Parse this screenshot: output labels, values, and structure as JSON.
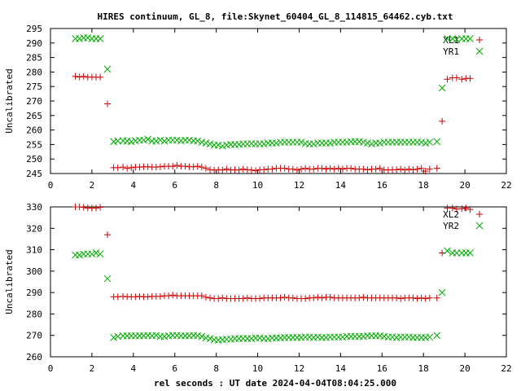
{
  "title": "HIRES continuum, GL_8, file:Skynet_60404_GL_8_114815_64462.cyb.txt",
  "chart_data": [
    {
      "type": "scatter",
      "ylabel": "Uncalibrated",
      "xlabel": "",
      "xlim": [
        0,
        22
      ],
      "ylim": [
        245,
        295
      ],
      "x_ticks": [
        0,
        2,
        4,
        6,
        8,
        10,
        12,
        14,
        16,
        18,
        20,
        22
      ],
      "y_ticks": [
        245,
        250,
        255,
        260,
        265,
        270,
        275,
        280,
        285,
        290,
        295
      ],
      "legend_position": "top-right",
      "series": [
        {
          "name": "XL1",
          "marker": "plus",
          "color": "#cc0000",
          "x": [
            1.2,
            1.4,
            1.6,
            1.8,
            2.0,
            2.2,
            2.4,
            2.75,
            3.05,
            3.25,
            3.5,
            3.7,
            3.9,
            4.1,
            4.3,
            4.5,
            4.7,
            4.9,
            5.1,
            5.3,
            5.5,
            5.7,
            5.9,
            6.1,
            6.3,
            6.5,
            6.7,
            6.9,
            7.1,
            7.3,
            7.5,
            7.7,
            7.9,
            8.1,
            8.3,
            8.5,
            8.7,
            8.9,
            9.1,
            9.3,
            9.5,
            9.7,
            9.9,
            10.1,
            10.3,
            10.5,
            10.7,
            10.9,
            11.1,
            11.3,
            11.5,
            11.7,
            11.9,
            12.1,
            12.3,
            12.5,
            12.7,
            12.9,
            13.1,
            13.3,
            13.5,
            13.7,
            13.9,
            14.1,
            14.3,
            14.5,
            14.7,
            14.9,
            15.1,
            15.3,
            15.5,
            15.7,
            15.9,
            16.1,
            16.3,
            16.5,
            16.7,
            16.9,
            17.1,
            17.3,
            17.5,
            17.7,
            17.9,
            18.1,
            18.3,
            18.65,
            18.9,
            19.15,
            19.4,
            19.6,
            19.85,
            20.05,
            20.25
          ],
          "y": [
            278.5,
            278.3,
            278.5,
            278.2,
            278.3,
            278.2,
            278.2,
            269.0,
            247.0,
            247.0,
            247.2,
            246.8,
            247.0,
            247.2,
            247.2,
            247.3,
            247.3,
            247.2,
            247.2,
            247.3,
            247.5,
            247.5,
            247.5,
            247.8,
            247.5,
            247.5,
            247.3,
            247.3,
            247.5,
            247.2,
            246.8,
            246.3,
            246.2,
            246.3,
            246.2,
            246.5,
            246.2,
            246.3,
            246.2,
            246.5,
            246.3,
            246.2,
            246.0,
            246.3,
            246.3,
            246.5,
            246.5,
            246.8,
            246.8,
            246.8,
            246.5,
            246.5,
            246.2,
            246.5,
            246.8,
            246.5,
            246.5,
            246.8,
            246.8,
            246.5,
            246.8,
            246.5,
            246.8,
            246.5,
            246.8,
            246.8,
            246.5,
            246.5,
            246.5,
            246.3,
            246.5,
            246.5,
            246.8,
            246.3,
            246.2,
            246.3,
            246.3,
            246.5,
            246.2,
            246.5,
            246.3,
            246.5,
            246.8,
            245.8,
            246.5,
            246.8,
            263.0,
            277.5,
            278.0,
            278.0,
            277.5,
            277.8,
            277.8
          ]
        },
        {
          "name": "YR1",
          "marker": "cross",
          "color": "#00aa00",
          "x": [
            1.2,
            1.4,
            1.6,
            1.8,
            2.0,
            2.2,
            2.4,
            2.75,
            3.05,
            3.25,
            3.5,
            3.7,
            3.9,
            4.1,
            4.3,
            4.5,
            4.7,
            4.9,
            5.1,
            5.3,
            5.5,
            5.7,
            5.9,
            6.1,
            6.3,
            6.5,
            6.7,
            6.9,
            7.1,
            7.3,
            7.5,
            7.7,
            7.9,
            8.1,
            8.3,
            8.5,
            8.7,
            8.9,
            9.1,
            9.3,
            9.5,
            9.7,
            9.9,
            10.1,
            10.3,
            10.5,
            10.7,
            10.9,
            11.1,
            11.3,
            11.5,
            11.7,
            11.9,
            12.1,
            12.3,
            12.5,
            12.7,
            12.9,
            13.1,
            13.3,
            13.5,
            13.7,
            13.9,
            14.1,
            14.3,
            14.5,
            14.7,
            14.9,
            15.1,
            15.3,
            15.5,
            15.7,
            15.9,
            16.1,
            16.3,
            16.5,
            16.7,
            16.9,
            17.1,
            17.3,
            17.5,
            17.7,
            17.9,
            18.1,
            18.3,
            18.65,
            18.9,
            19.15,
            19.4,
            19.6,
            19.85,
            20.05,
            20.25
          ],
          "y": [
            291.5,
            291.5,
            291.8,
            291.8,
            291.5,
            291.5,
            291.5,
            281.0,
            256.0,
            256.2,
            256.3,
            256.2,
            256.0,
            256.3,
            256.5,
            256.5,
            256.8,
            256.2,
            256.2,
            256.5,
            256.2,
            256.5,
            256.5,
            256.5,
            256.3,
            256.5,
            256.5,
            256.3,
            256.2,
            255.8,
            255.5,
            255.2,
            254.8,
            254.8,
            254.5,
            254.8,
            255.0,
            255.0,
            255.0,
            255.2,
            255.2,
            255.3,
            255.2,
            255.2,
            255.2,
            255.5,
            255.5,
            255.5,
            255.8,
            255.8,
            255.8,
            255.8,
            255.8,
            255.8,
            255.3,
            255.2,
            255.2,
            255.5,
            255.5,
            255.5,
            255.5,
            255.8,
            255.8,
            255.8,
            255.8,
            256.0,
            256.0,
            256.0,
            255.8,
            255.5,
            255.2,
            255.5,
            255.5,
            255.8,
            255.8,
            255.8,
            255.8,
            255.8,
            255.8,
            255.8,
            255.8,
            255.8,
            255.8,
            255.5,
            255.8,
            256.0,
            274.5,
            291.5,
            291.5,
            291.2,
            291.5,
            291.5,
            291.5
          ]
        }
      ]
    },
    {
      "type": "scatter",
      "ylabel": "Uncalibrated",
      "xlabel": "rel seconds : UT date 2024-04-04T08:04:25.000",
      "xlim": [
        0,
        22
      ],
      "ylim": [
        260,
        330
      ],
      "x_ticks": [
        0,
        2,
        4,
        6,
        8,
        10,
        12,
        14,
        16,
        18,
        20,
        22
      ],
      "y_ticks": [
        260,
        270,
        280,
        290,
        300,
        310,
        320,
        330
      ],
      "legend_position": "top-right",
      "series": [
        {
          "name": "XL2",
          "marker": "plus",
          "color": "#cc0000",
          "x": [
            1.2,
            1.4,
            1.6,
            1.8,
            2.0,
            2.2,
            2.4,
            2.75,
            3.05,
            3.25,
            3.5,
            3.7,
            3.9,
            4.1,
            4.3,
            4.5,
            4.7,
            4.9,
            5.1,
            5.3,
            5.5,
            5.7,
            5.9,
            6.1,
            6.3,
            6.5,
            6.7,
            6.9,
            7.1,
            7.3,
            7.5,
            7.7,
            7.9,
            8.1,
            8.3,
            8.5,
            8.7,
            8.9,
            9.1,
            9.3,
            9.5,
            9.7,
            9.9,
            10.1,
            10.3,
            10.5,
            10.7,
            10.9,
            11.1,
            11.3,
            11.5,
            11.7,
            11.9,
            12.1,
            12.3,
            12.5,
            12.7,
            12.9,
            13.1,
            13.3,
            13.5,
            13.7,
            13.9,
            14.1,
            14.3,
            14.5,
            14.7,
            14.9,
            15.1,
            15.3,
            15.5,
            15.7,
            15.9,
            16.1,
            16.3,
            16.5,
            16.7,
            16.9,
            17.1,
            17.3,
            17.5,
            17.7,
            17.9,
            18.1,
            18.3,
            18.65,
            18.9,
            19.15,
            19.4,
            19.6,
            19.85,
            20.05,
            20.25
          ],
          "y": [
            330.0,
            330.0,
            329.8,
            329.5,
            329.5,
            329.5,
            329.8,
            317.0,
            288.0,
            288.0,
            288.2,
            288.0,
            288.0,
            288.0,
            288.2,
            288.0,
            288.0,
            288.2,
            288.2,
            288.2,
            288.5,
            288.5,
            288.8,
            288.5,
            288.5,
            288.5,
            288.5,
            288.5,
            288.5,
            288.5,
            287.8,
            287.5,
            287.2,
            287.2,
            287.5,
            287.2,
            287.2,
            287.2,
            287.2,
            287.2,
            287.5,
            287.2,
            287.2,
            287.2,
            287.5,
            287.5,
            287.5,
            287.5,
            287.5,
            287.8,
            287.5,
            287.5,
            287.2,
            287.2,
            287.2,
            287.5,
            287.5,
            287.8,
            287.5,
            287.8,
            287.8,
            287.5,
            287.5,
            287.5,
            287.5,
            287.5,
            287.5,
            287.5,
            287.8,
            287.5,
            287.5,
            287.5,
            287.5,
            287.5,
            287.5,
            287.5,
            287.5,
            287.2,
            287.5,
            287.5,
            287.5,
            287.2,
            287.5,
            287.2,
            287.5,
            287.5,
            308.5,
            329.5,
            329.5,
            329.0,
            329.2,
            329.5,
            328.8
          ]
        },
        {
          "name": "YR2",
          "marker": "cross",
          "color": "#00aa00",
          "x": [
            1.2,
            1.4,
            1.6,
            1.8,
            2.0,
            2.2,
            2.4,
            2.75,
            3.05,
            3.25,
            3.5,
            3.7,
            3.9,
            4.1,
            4.3,
            4.5,
            4.7,
            4.9,
            5.1,
            5.3,
            5.5,
            5.7,
            5.9,
            6.1,
            6.3,
            6.5,
            6.7,
            6.9,
            7.1,
            7.3,
            7.5,
            7.7,
            7.9,
            8.1,
            8.3,
            8.5,
            8.7,
            8.9,
            9.1,
            9.3,
            9.5,
            9.7,
            9.9,
            10.1,
            10.3,
            10.5,
            10.7,
            10.9,
            11.1,
            11.3,
            11.5,
            11.7,
            11.9,
            12.1,
            12.3,
            12.5,
            12.7,
            12.9,
            13.1,
            13.3,
            13.5,
            13.7,
            13.9,
            14.1,
            14.3,
            14.5,
            14.7,
            14.9,
            15.1,
            15.3,
            15.5,
            15.7,
            15.9,
            16.1,
            16.3,
            16.5,
            16.7,
            16.9,
            17.1,
            17.3,
            17.5,
            17.7,
            17.9,
            18.1,
            18.3,
            18.65,
            18.9,
            19.15,
            19.4,
            19.6,
            19.85,
            20.05,
            20.25
          ],
          "y": [
            307.5,
            307.5,
            308.0,
            308.0,
            308.0,
            308.5,
            308.0,
            296.5,
            269.0,
            269.5,
            269.8,
            269.8,
            269.8,
            269.8,
            269.8,
            269.8,
            270.0,
            269.8,
            270.0,
            269.5,
            269.5,
            269.8,
            270.0,
            270.0,
            269.8,
            269.8,
            269.8,
            270.0,
            269.8,
            269.5,
            268.8,
            268.5,
            268.0,
            267.8,
            268.0,
            268.2,
            268.2,
            268.5,
            268.5,
            268.5,
            268.5,
            268.5,
            268.8,
            268.8,
            268.5,
            268.5,
            268.8,
            268.8,
            268.8,
            269.0,
            269.0,
            269.0,
            269.0,
            269.0,
            269.2,
            269.2,
            269.0,
            269.2,
            269.0,
            269.0,
            269.2,
            269.2,
            269.2,
            269.2,
            269.5,
            269.5,
            269.5,
            269.5,
            269.5,
            269.8,
            269.8,
            269.8,
            269.8,
            269.5,
            269.2,
            269.2,
            269.0,
            269.2,
            269.2,
            269.2,
            269.0,
            269.0,
            269.0,
            269.0,
            269.2,
            270.0,
            290.0,
            309.5,
            308.5,
            308.5,
            308.5,
            308.5,
            308.5
          ]
        }
      ]
    }
  ]
}
